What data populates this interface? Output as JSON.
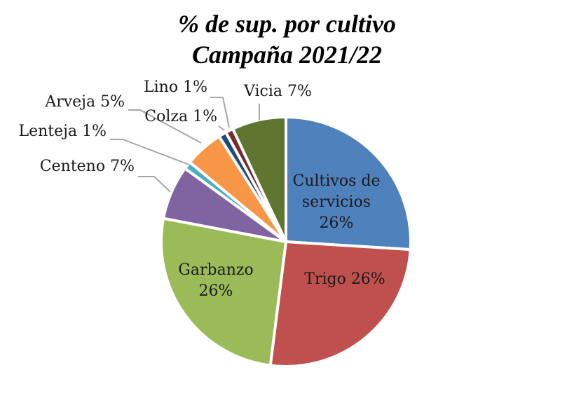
{
  "chart_data": {
    "type": "pie",
    "title": "% de sup. por cultivo",
    "subtitle": "Campaña 2021/22",
    "legend": "none",
    "slices": [
      {
        "name": "Cultivos de servicios",
        "value": 26,
        "label": [
          "Cultivos de",
          "servicios",
          "26%"
        ],
        "color": "#4f81bd"
      },
      {
        "name": "Trigo",
        "value": 26,
        "label": [
          "Trigo 26%"
        ],
        "color": "#c0504d"
      },
      {
        "name": "Garbanzo",
        "value": 26,
        "label": [
          "Garbanzo",
          "26%"
        ],
        "color": "#9bbb59"
      },
      {
        "name": "Centeno",
        "value": 7,
        "label": [
          "Centeno 7%"
        ],
        "color": "#8064a2"
      },
      {
        "name": "Lenteja",
        "value": 1,
        "label": [
          "Lenteja 1%"
        ],
        "color": "#4bacc6"
      },
      {
        "name": "Arveja",
        "value": 5,
        "label": [
          "Arveja 5%"
        ],
        "color": "#f79646"
      },
      {
        "name": "Colza",
        "value": 1,
        "label": [
          "Colza 1%"
        ],
        "color": "#1f497d"
      },
      {
        "name": "Lino",
        "value": 1,
        "label": [
          "Lino 1%"
        ],
        "color": "#772c2a"
      },
      {
        "name": "Vicia",
        "value": 7,
        "label": [
          "Vicia 7%"
        ],
        "color": "#5f7530"
      }
    ]
  }
}
